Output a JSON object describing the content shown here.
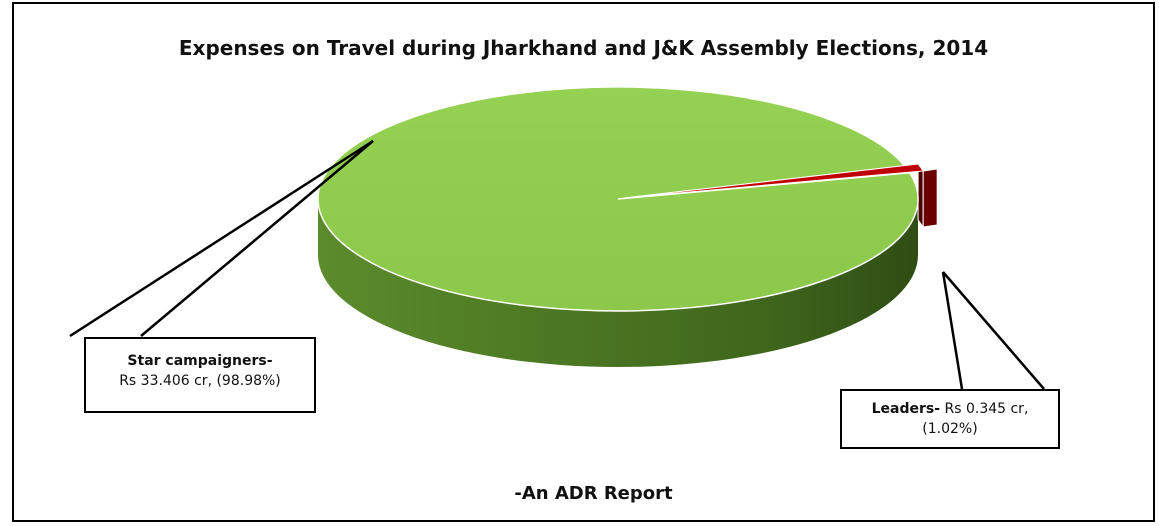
{
  "chart_data": {
    "type": "pie",
    "title": "Expenses on Travel during Jharkhand and J&K Assembly Elections, 2014",
    "slices": [
      {
        "label": "Star campaigners-",
        "value_text": "Rs 33.406 cr, (98.98%)",
        "value": 33.406,
        "percent": 98.98,
        "color": "#92d050"
      },
      {
        "label": "Leaders-",
        "value_text": "Rs 0.345 cr,",
        "percent_text": "(1.02%)",
        "value": 0.345,
        "percent": 1.02,
        "color": "#c00000"
      }
    ],
    "note": "-An ADR Report"
  }
}
